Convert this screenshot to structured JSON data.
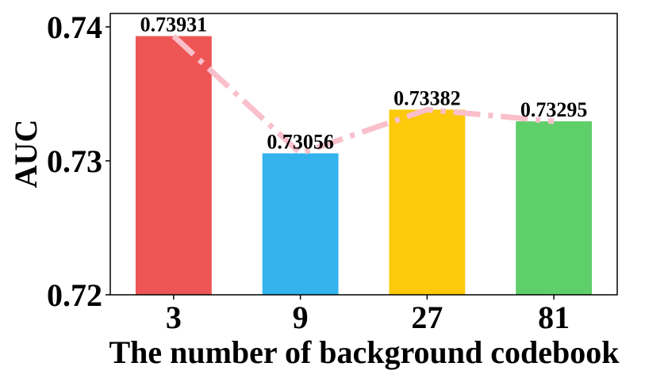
{
  "chart_data": {
    "type": "bar",
    "categories": [
      "3",
      "9",
      "27",
      "81"
    ],
    "values": [
      0.73931,
      0.73056,
      0.73382,
      0.73295
    ],
    "data_labels": [
      "0.73931",
      "0.73056",
      "0.73382",
      "0.73295"
    ],
    "bar_colors": [
      "#ee5555",
      "#33b3ee",
      "#fcc90b",
      "#5fcf6a"
    ],
    "trend_line": {
      "style": "dash-dot",
      "color": "#f9c0cb"
    },
    "xlabel": "The number of background codebook",
    "ylabel": "AUC",
    "ylim": [
      0.72,
      0.741
    ],
    "yticks": [
      0.72,
      0.73,
      0.74
    ],
    "ytick_labels": [
      "0.72",
      "0.73",
      "0.74"
    ],
    "grid": false,
    "legend": "none"
  }
}
